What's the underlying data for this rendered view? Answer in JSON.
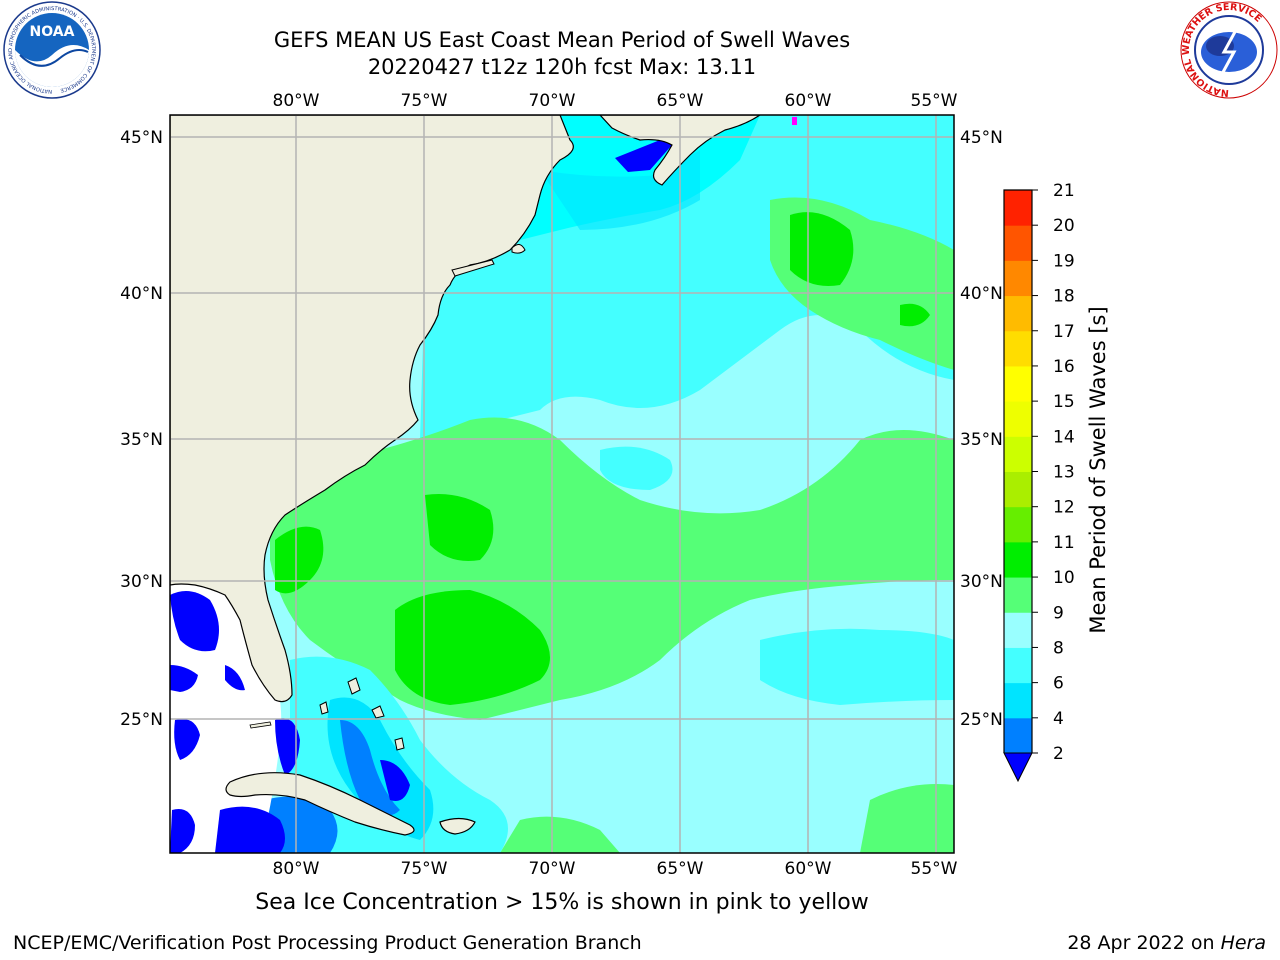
{
  "title": {
    "line1": "GEFS MEAN US East Coast Mean Period of Swell Waves",
    "line2": "20220427 t12z 120h fcst   Max: 13.11"
  },
  "logos": {
    "left": {
      "name": "noaa-logo",
      "text": "NOAA",
      "ring_text": "NATIONAL OCEANIC AND ATMOSPHERIC ADMINISTRATION · U.S. DEPARTMENT OF COMMERCE"
    },
    "right": {
      "name": "nws-logo",
      "ring_text": "NATIONAL WEATHER SERVICE"
    }
  },
  "map": {
    "longitude_ticks": [
      "80°W",
      "75°W",
      "70°W",
      "65°W",
      "60°W",
      "55°W"
    ],
    "latitude_ticks": [
      "45°N",
      "40°N",
      "35°N",
      "30°N",
      "25°N"
    ],
    "land_color": "#efefdf",
    "ocean_no_data_color": "#ffffff",
    "grid_color": "#b4b4b4"
  },
  "colorbar": {
    "label": "Mean Period of Swell Waves [s]",
    "ticks": [
      "2",
      "4",
      "6",
      "8",
      "9",
      "10",
      "11",
      "12",
      "13",
      "14",
      "15",
      "16",
      "17",
      "18",
      "19",
      "20",
      "21"
    ],
    "colors": [
      "#0080ff",
      "#00e4ff",
      "#44ffff",
      "#99ffff",
      "#55ff77",
      "#00ee00",
      "#66ee00",
      "#aaee00",
      "#ccff00",
      "#eeff00",
      "#ffff00",
      "#ffdd00",
      "#ffbb00",
      "#ff8800",
      "#ff5500",
      "#ff2200",
      "#ff0000"
    ],
    "under_color": "#0000ff"
  },
  "caption": "Sea Ice Concentration > 15% is shown in pink to yellow",
  "footer": {
    "left": "NCEP/EMC/Verification Post Processing Product Generation Branch",
    "date": "28 Apr 2022 on ",
    "host": "Hera"
  }
}
